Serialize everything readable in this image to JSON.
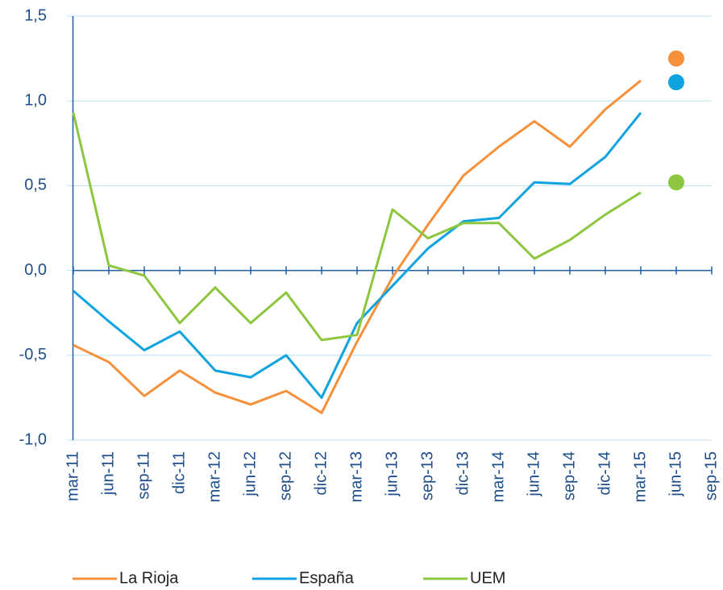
{
  "chart_data": {
    "type": "line",
    "categories": [
      "mar-11",
      "jun-11",
      "sep-11",
      "dic-11",
      "mar-12",
      "jun-12",
      "sep-12",
      "dic-12",
      "mar-13",
      "jun-13",
      "sep-13",
      "dic-13",
      "mar-14",
      "jun-14",
      "sep-14",
      "dic-14",
      "mar-15",
      "jun-15",
      "sep-15"
    ],
    "series": [
      {
        "name": "La Rioja",
        "color": "#f7903a",
        "values": [
          -0.44,
          -0.54,
          -0.74,
          -0.59,
          -0.72,
          -0.79,
          -0.71,
          -0.84,
          -0.42,
          -0.04,
          0.27,
          0.56,
          0.73,
          0.88,
          0.73,
          0.95,
          1.12,
          null,
          null
        ],
        "dot_values": [
          null,
          null,
          null,
          null,
          null,
          null,
          null,
          null,
          null,
          null,
          null,
          null,
          null,
          null,
          null,
          null,
          null,
          1.25,
          null
        ]
      },
      {
        "name": "España",
        "color": "#0fa3e0",
        "values": [
          -0.12,
          -0.3,
          -0.47,
          -0.36,
          -0.59,
          -0.63,
          -0.5,
          -0.75,
          -0.31,
          -0.09,
          0.13,
          0.29,
          0.31,
          0.52,
          0.51,
          0.67,
          0.93,
          null,
          null
        ],
        "dot_values": [
          null,
          null,
          null,
          null,
          null,
          null,
          null,
          null,
          null,
          null,
          null,
          null,
          null,
          null,
          null,
          null,
          null,
          1.11,
          null
        ]
      },
      {
        "name": "UEM",
        "color": "#8dc63f",
        "values": [
          0.93,
          0.03,
          -0.03,
          -0.31,
          -0.1,
          -0.31,
          -0.13,
          -0.41,
          -0.38,
          0.36,
          0.19,
          0.28,
          0.28,
          0.07,
          0.18,
          0.33,
          0.46,
          null,
          null
        ],
        "dot_values": [
          null,
          null,
          null,
          null,
          null,
          null,
          null,
          null,
          null,
          null,
          null,
          null,
          null,
          null,
          null,
          null,
          null,
          0.52,
          null
        ]
      }
    ],
    "ylim": [
      -1.0,
      1.5
    ],
    "yticks": [
      {
        "value": -1.0,
        "label": "-1,0"
      },
      {
        "value": -0.5,
        "label": "-0,5"
      },
      {
        "value": 0,
        "label": "0,0"
      },
      {
        "value": 0.5,
        "label": "0,5"
      },
      {
        "value": 1.0,
        "label": "1,0"
      },
      {
        "value": 1.5,
        "label": "1,5"
      }
    ],
    "grid": true,
    "legend": "bottom"
  }
}
